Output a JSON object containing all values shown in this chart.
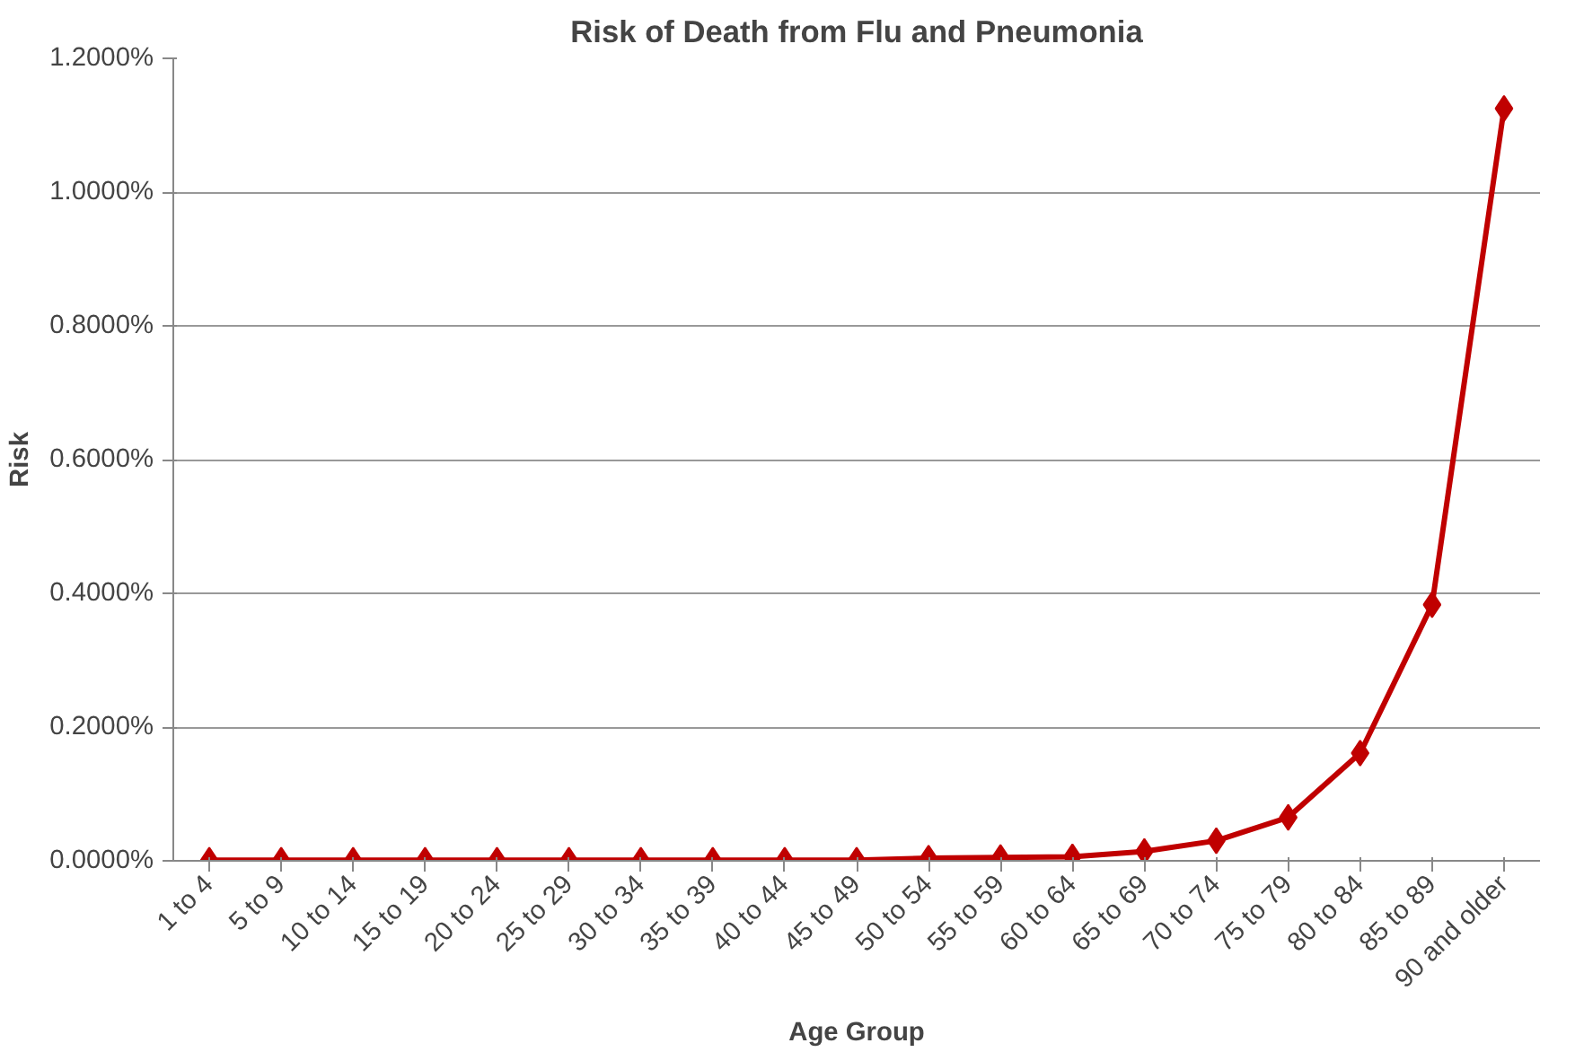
{
  "chart_data": {
    "type": "line",
    "title": "Risk of Death from Flu and Pneumonia",
    "xlabel": "Age Group",
    "ylabel": "Risk",
    "categories": [
      "1 to 4",
      "5 to 9",
      "10 to 14",
      "15 to 19",
      "20 to 24",
      "25 to 29",
      "30 to 34",
      "35 to 39",
      "40 to 44",
      "45 to 49",
      "50 to 54",
      "55 to 59",
      "60 to 64",
      "65 to 69",
      "70 to 74",
      "75 to 79",
      "80 to 84",
      "85 to 89",
      "90 and older"
    ],
    "series": [
      {
        "color": "#c00000",
        "values": [
          0.001,
          0.001,
          0.001,
          0.001,
          0.001,
          0.001,
          0.001,
          0.001,
          0.001,
          0.001,
          0.004,
          0.005,
          0.006,
          0.014,
          0.03,
          0.065,
          0.161,
          0.383,
          1.125
        ]
      }
    ],
    "ylim": [
      0,
      1.2
    ],
    "yticks": [
      {
        "value": 0,
        "label": "0.0000%"
      },
      {
        "value": 0.2,
        "label": "0.2000%"
      },
      {
        "value": 0.4,
        "label": "0.4000%"
      },
      {
        "value": 0.6,
        "label": "0.6000%"
      },
      {
        "value": 0.8,
        "label": "0.8000%"
      },
      {
        "value": 1.0,
        "label": "1.0000%"
      },
      {
        "value": 1.2,
        "label": "1.2000%"
      }
    ],
    "grid": "y",
    "marker": "diamond",
    "line_style": "solid"
  }
}
